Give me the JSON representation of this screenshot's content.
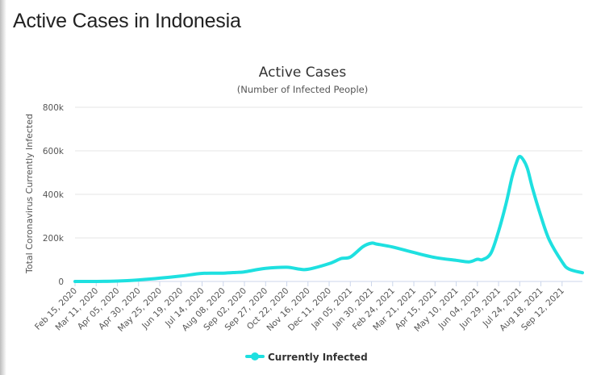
{
  "page": {
    "heading": "Active Cases in Indonesia"
  },
  "colors": {
    "series": "#1ee0e0",
    "grid": "#e6e6e6",
    "axis_line": "#ccd6eb"
  },
  "chart_data": {
    "type": "line",
    "title": "Active Cases",
    "subtitle": "(Number of Infected People)",
    "xlabel": "",
    "ylabel": "Total Coronavirus Currently Infected",
    "ylim": [
      0,
      800000
    ],
    "y_ticks": [
      0,
      200000,
      400000,
      600000,
      800000
    ],
    "y_tick_labels": [
      "0",
      "200k",
      "400k",
      "600k",
      "800k"
    ],
    "x_range": [
      "2020-02-15",
      "2021-10-06"
    ],
    "x_tick_dates": [
      "2020-02-15",
      "2020-03-11",
      "2020-04-05",
      "2020-04-30",
      "2020-05-25",
      "2020-06-19",
      "2020-07-14",
      "2020-08-08",
      "2020-09-02",
      "2020-09-27",
      "2020-10-22",
      "2020-11-16",
      "2020-12-11",
      "2021-01-05",
      "2021-01-30",
      "2021-02-24",
      "2021-03-21",
      "2021-04-15",
      "2021-05-10",
      "2021-06-04",
      "2021-06-29",
      "2021-07-24",
      "2021-08-18",
      "2021-09-12"
    ],
    "x_tick_labels": [
      "Feb 15, 2020",
      "Mar 11, 2020",
      "Apr 05, 2020",
      "Apr 30, 2020",
      "May 25, 2020",
      "Jun 19, 2020",
      "Jul 14, 2020",
      "Aug 08, 2020",
      "Sep 02, 2020",
      "Sep 27, 2020",
      "Oct 22, 2020",
      "Nov 16, 2020",
      "Dec 11, 2020",
      "Jan 05, 2021",
      "Jan 30, 2021",
      "Feb 24, 2021",
      "Mar 21, 2021",
      "Apr 15, 2021",
      "May 10, 2021",
      "Jun 04, 2021",
      "Jun 29, 2021",
      "Jul 24, 2021",
      "Aug 18, 2021",
      "Sep 12, 2021"
    ],
    "grid": true,
    "legend": "bottom-center",
    "series": [
      {
        "name": "Currently Infected",
        "points": [
          [
            "2020-02-15",
            0
          ],
          [
            "2020-03-11",
            100
          ],
          [
            "2020-04-05",
            1900
          ],
          [
            "2020-04-30",
            7000
          ],
          [
            "2020-05-25",
            15000
          ],
          [
            "2020-06-19",
            25000
          ],
          [
            "2020-07-14",
            37000
          ],
          [
            "2020-08-08",
            38000
          ],
          [
            "2020-08-25",
            42000
          ],
          [
            "2020-09-02",
            44000
          ],
          [
            "2020-09-27",
            60000
          ],
          [
            "2020-10-22",
            65000
          ],
          [
            "2020-11-05",
            57000
          ],
          [
            "2020-11-16",
            56000
          ],
          [
            "2020-12-11",
            82000
          ],
          [
            "2020-12-25",
            105000
          ],
          [
            "2021-01-05",
            112000
          ],
          [
            "2021-01-20",
            160000
          ],
          [
            "2021-01-30",
            176000
          ],
          [
            "2021-02-05",
            172000
          ],
          [
            "2021-02-24",
            158000
          ],
          [
            "2021-03-21",
            133000
          ],
          [
            "2021-04-15",
            110000
          ],
          [
            "2021-05-10",
            97000
          ],
          [
            "2021-05-25",
            90000
          ],
          [
            "2021-06-04",
            102000
          ],
          [
            "2021-06-10",
            100000
          ],
          [
            "2021-06-20",
            130000
          ],
          [
            "2021-06-29",
            230000
          ],
          [
            "2021-07-08",
            360000
          ],
          [
            "2021-07-15",
            480000
          ],
          [
            "2021-07-21",
            555000
          ],
          [
            "2021-07-24",
            574000
          ],
          [
            "2021-07-28",
            560000
          ],
          [
            "2021-08-02",
            520000
          ],
          [
            "2021-08-08",
            430000
          ],
          [
            "2021-08-18",
            300000
          ],
          [
            "2021-08-28",
            190000
          ],
          [
            "2021-09-12",
            90000
          ],
          [
            "2021-09-20",
            57000
          ],
          [
            "2021-10-06",
            40000
          ]
        ]
      }
    ]
  }
}
